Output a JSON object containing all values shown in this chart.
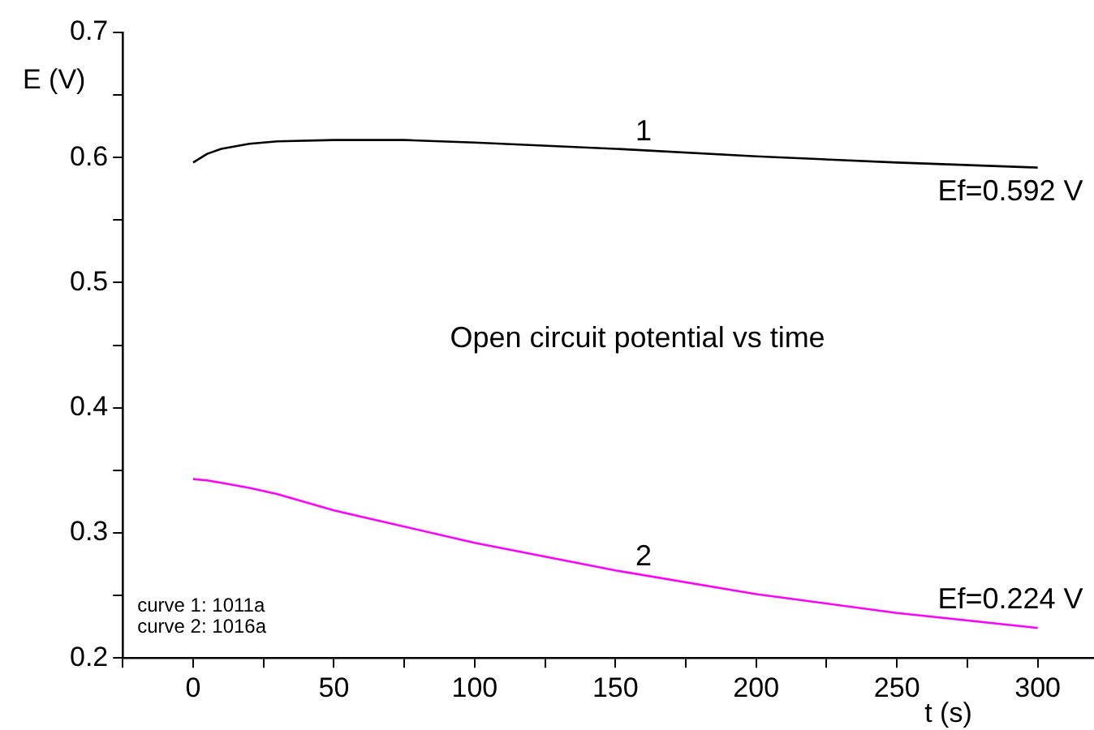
{
  "chart_data": {
    "type": "line",
    "title": "Open circuit potential vs time",
    "xlabel": "t (s)",
    "ylabel": "E (V)",
    "xlim": [
      -25,
      320
    ],
    "xticks": [
      {
        "value": -25,
        "label": null
      },
      0,
      {
        "value": 25,
        "label": null
      },
      50,
      {
        "value": 75,
        "label": null
      },
      100,
      {
        "value": 125,
        "label": null
      },
      150,
      {
        "value": 175,
        "label": null
      },
      200,
      {
        "value": 225,
        "label": null
      },
      250,
      {
        "value": 275,
        "label": null
      },
      300
    ],
    "ylim": [
      0.2,
      0.7
    ],
    "yticks": [
      0.2,
      {
        "value": 0.25,
        "label": null
      },
      0.3,
      {
        "value": 0.35,
        "label": null
      },
      0.4,
      {
        "value": 0.45,
        "label": null
      },
      0.5,
      {
        "value": 0.55,
        "label": null
      },
      0.6,
      {
        "value": 0.65,
        "label": null
      },
      0.7
    ],
    "grid": false,
    "legend": false,
    "marker": "none",
    "line_style": "solid",
    "x": [
      0,
      5,
      10,
      20,
      30,
      50,
      75,
      100,
      150,
      200,
      250,
      300
    ],
    "series": [
      {
        "name": "1",
        "color": "#000000",
        "values": [
          0.596,
          0.603,
          0.607,
          0.611,
          0.613,
          0.614,
          0.614,
          0.612,
          0.607,
          0.601,
          0.596,
          0.592
        ]
      },
      {
        "name": "2",
        "color": "#ff00ff",
        "values": [
          0.343,
          0.342,
          0.34,
          0.336,
          0.331,
          0.318,
          0.305,
          0.292,
          0.27,
          0.251,
          0.236,
          0.224
        ]
      }
    ],
    "annotations": [
      {
        "text": "Ef=0.592 V",
        "x": 300,
        "y": 0.592
      },
      {
        "text": "Ef=0.224 V",
        "x": 300,
        "y": 0.224
      },
      "curve 1: 1011a",
      "curve 2: 1016a"
    ]
  }
}
